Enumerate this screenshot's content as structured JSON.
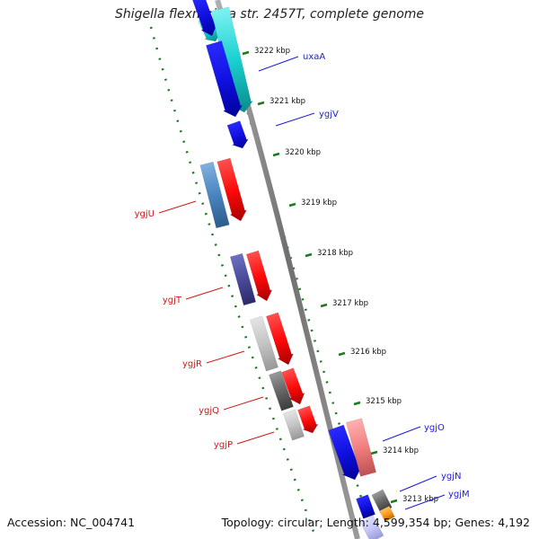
{
  "title": "Shigella flexneri 2a str. 2457T, complete genome",
  "footer": {
    "accession": "Accession: NC_004741",
    "summary": "Topology: circular; Length: 4,599,354 bp; Genes: 4,192"
  },
  "ticks": [
    {
      "label": "3222 kbp"
    },
    {
      "label": "3221 kbp"
    },
    {
      "label": "3220 kbp"
    },
    {
      "label": "3219 kbp"
    },
    {
      "label": "3218 kbp"
    },
    {
      "label": "3217 kbp"
    },
    {
      "label": "3216 kbp"
    },
    {
      "label": "3215 kbp"
    },
    {
      "label": "3214 kbp"
    },
    {
      "label": "3213 kbp"
    }
  ],
  "gene_labels": [
    {
      "name": "uxaA",
      "color": "#1a1adf"
    },
    {
      "name": "ygjV",
      "color": "#1a1adf"
    },
    {
      "name": "ygjU",
      "color": "#d01818"
    },
    {
      "name": "ygjT",
      "color": "#d01818"
    },
    {
      "name": "ygjR",
      "color": "#d01818"
    },
    {
      "name": "ygjQ",
      "color": "#d01818"
    },
    {
      "name": "ygjP",
      "color": "#d01818"
    },
    {
      "name": "ygjO",
      "color": "#1a1adf"
    },
    {
      "name": "ygjN",
      "color": "#1a1adf"
    },
    {
      "name": "ygjM",
      "color": "#1a1adf"
    }
  ],
  "colors": {
    "backbone": "#888888",
    "dotted_ring": "#1a7a1a",
    "forward_gene": "#0000ee",
    "reverse_gene": "#ee0000"
  }
}
